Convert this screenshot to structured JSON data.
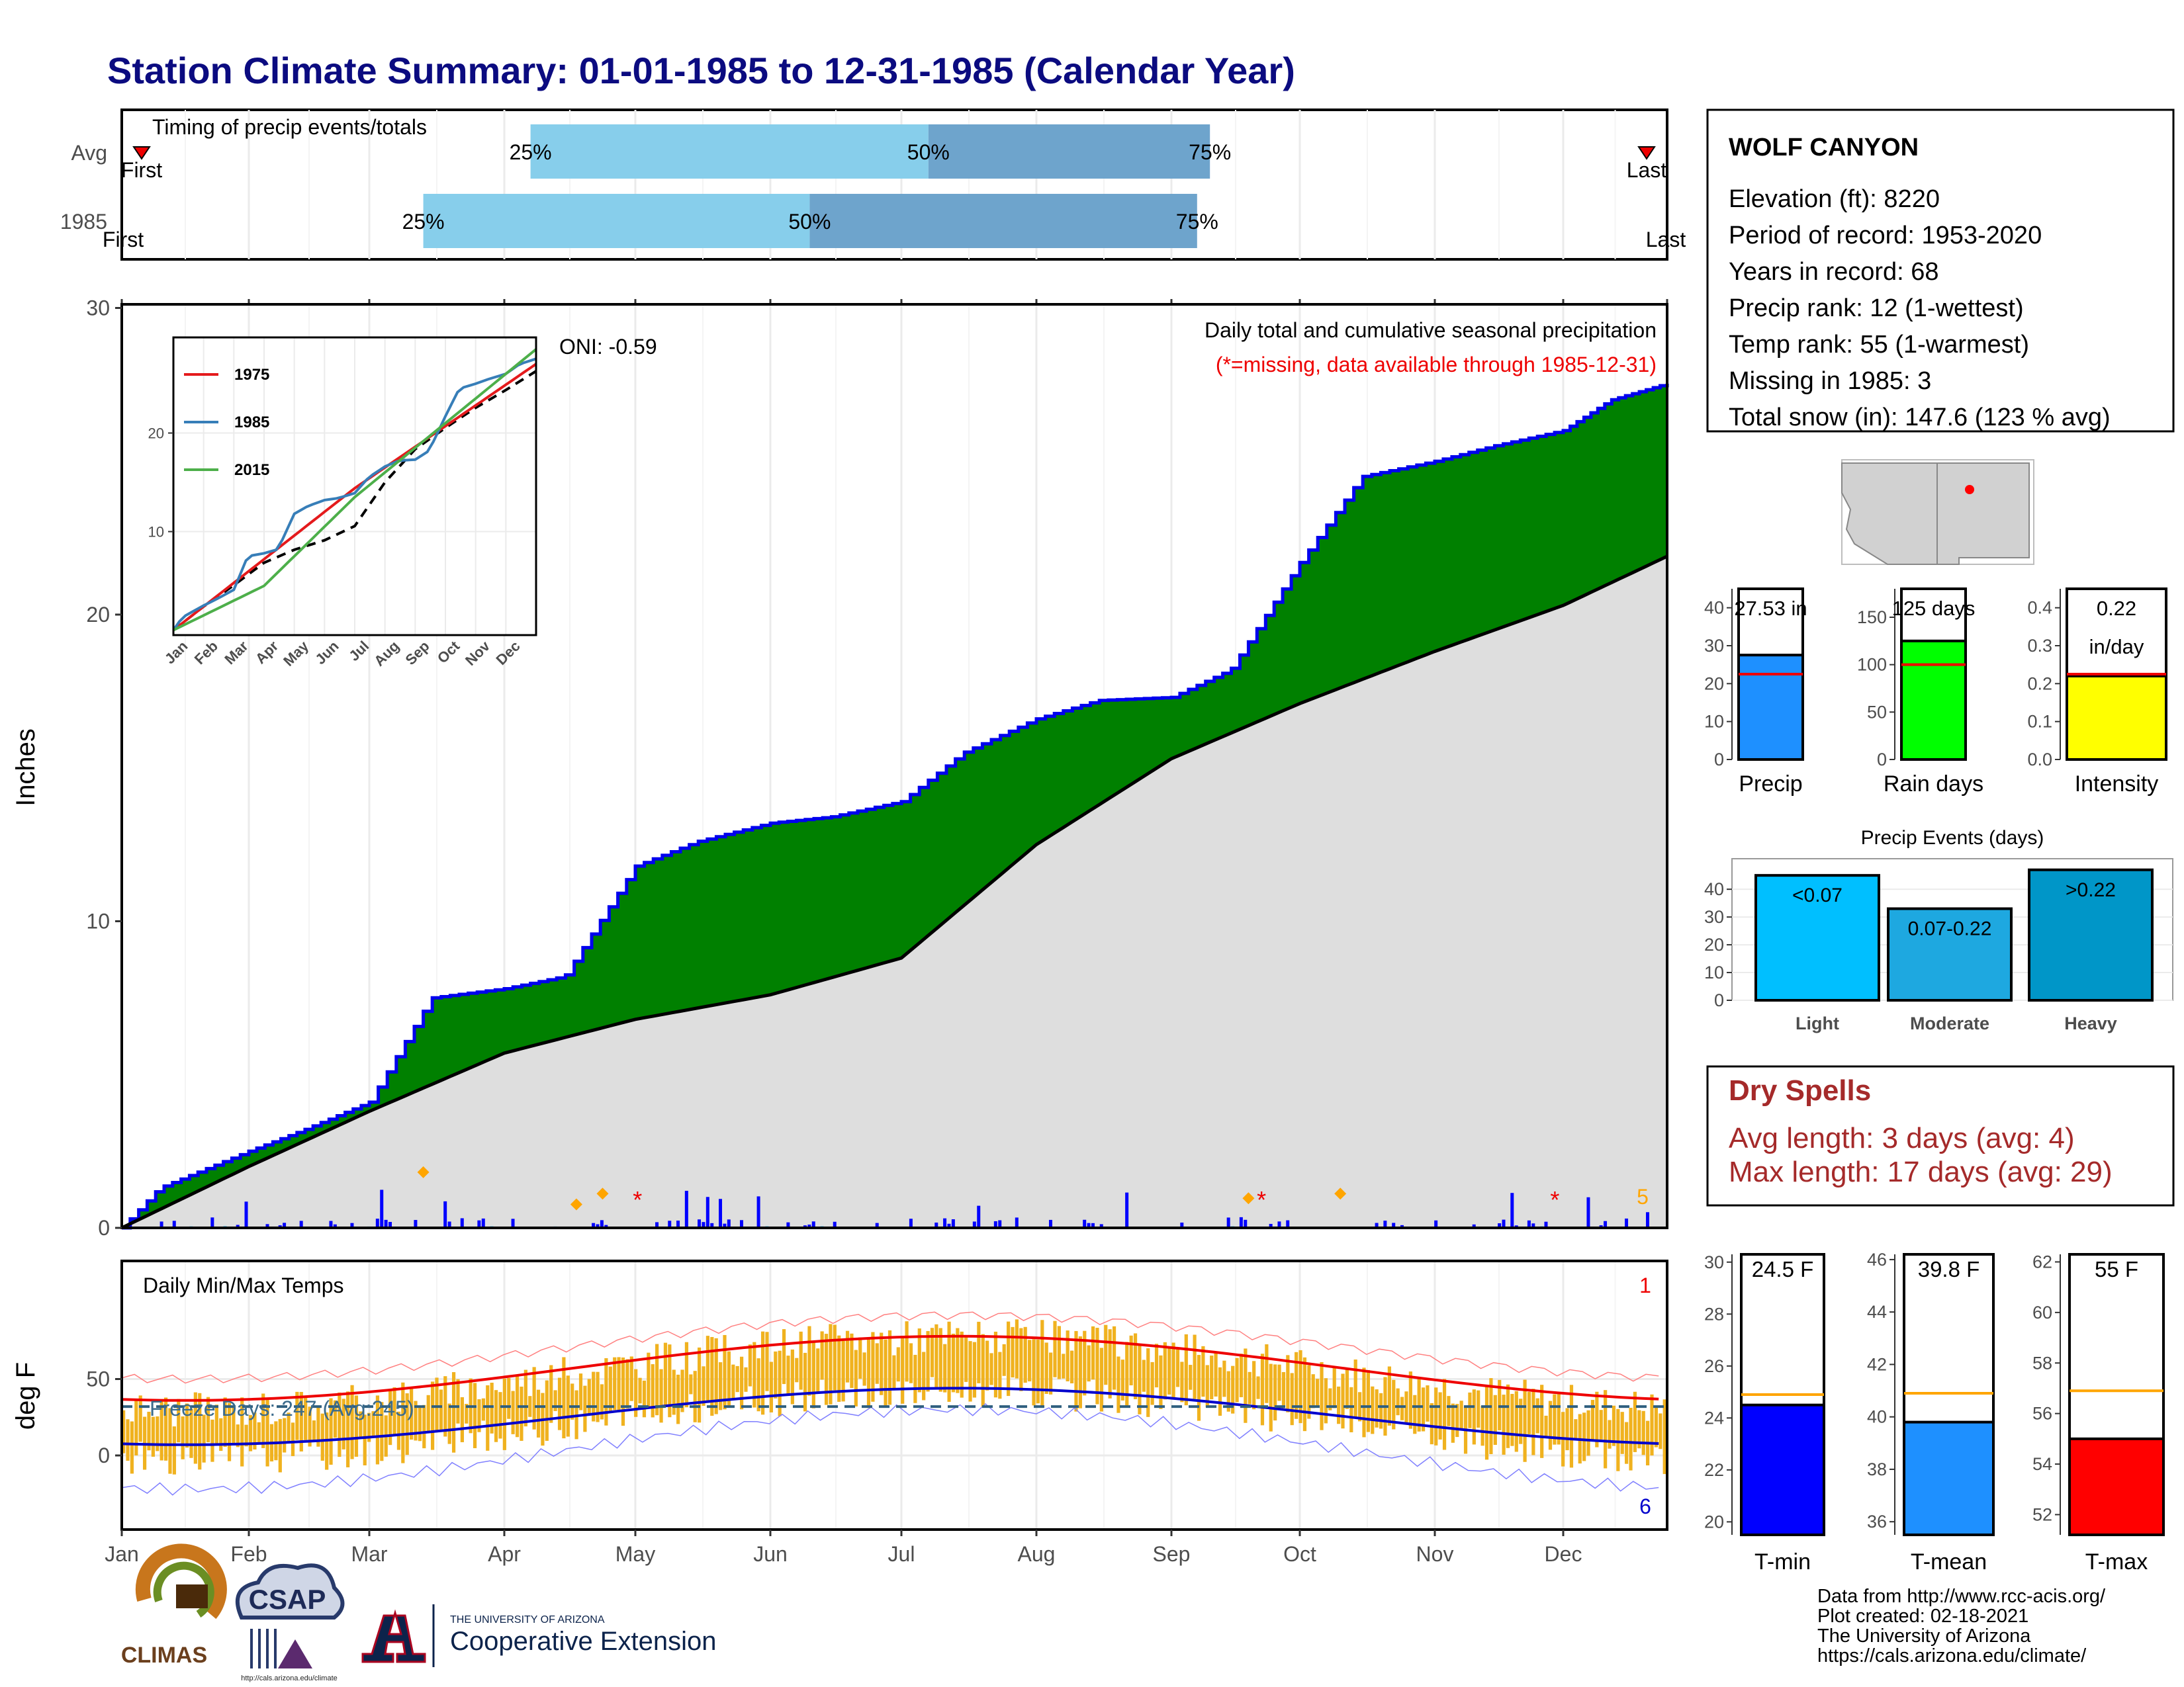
{
  "title": "Station Climate Summary: 01-01-1985 to 12-31-1985 (Calendar Year)",
  "colors": {
    "title": "#0b0b80",
    "cum_fill": "#008000",
    "avg_fill": "#dedede",
    "step_line": "#0000ee",
    "bar_light": "#87ceeb",
    "bar_dark": "#6ea4cc",
    "temp_bar": "#f0b21f",
    "tmax_line": "#ee0000",
    "tmin_line": "#0000cc",
    "dry_spell": "#a52a2a"
  },
  "timing_panel": {
    "title": "Timing of precip events/totals",
    "rows": [
      {
        "label": "Avg",
        "first": "First",
        "last": "Last",
        "q25": "25%",
        "q50": "50%",
        "q75": "75%",
        "q25_month": 4.2,
        "q50_month": 7.2,
        "q75_month": 9.3
      },
      {
        "label": "1985",
        "first": "First",
        "last": "Last",
        "q25": "25%",
        "q50": "50%",
        "q75": "75%",
        "q25_month": 3.4,
        "q50_month": 6.3,
        "q75_month": 9.2
      }
    ]
  },
  "precip_panel": {
    "ylabel": "Inches",
    "subtitle": "Daily total and cumulative seasonal precipitation",
    "note": "(*=missing, data available through 1985-12-31)",
    "oni": "ONI: -0.59",
    "corner_count": "5",
    "y_ticks": [
      "0",
      "10",
      "20",
      "30"
    ]
  },
  "inset": {
    "legend": [
      "1975",
      "1985",
      "2015"
    ],
    "legend_colors": [
      "#e41a1c",
      "#377eb8",
      "#4daf4a"
    ],
    "y_ticks": [
      "10",
      "20"
    ],
    "months": [
      "Jan",
      "Feb",
      "Mar",
      "Apr",
      "May",
      "Jun",
      "Jul",
      "Aug",
      "Sep",
      "Oct",
      "Nov",
      "Dec"
    ]
  },
  "temp_panel": {
    "ylabel": "deg F",
    "title": "Daily Min/Max Temps",
    "freeze": "Freeze Days: 247 (Avg:245)",
    "corner_top": "1",
    "corner_bottom": "6",
    "y_ticks": [
      "0",
      "50"
    ]
  },
  "months": [
    "Jan",
    "Feb",
    "Mar",
    "Apr",
    "May",
    "Jun",
    "Jul",
    "Aug",
    "Sep",
    "Oct",
    "Nov",
    "Dec"
  ],
  "station": {
    "name": "WOLF CANYON",
    "lines": [
      "Elevation (ft): 8220",
      "Period of record: 1953-2020",
      "Years in record: 68",
      "Precip rank: 12 (1-wettest)",
      "Temp rank: 55 (1-warmest)",
      "Missing in 1985: 3",
      "Total snow (in): 147.6 (123 % avg)"
    ]
  },
  "mini_bars": [
    {
      "label": "Precip",
      "value_text": "27.53 in",
      "value": 27.53,
      "avg": 22.5,
      "ymax": 45,
      "ticks": [
        "0",
        "10",
        "20",
        "30",
        "40"
      ],
      "color": "#1e90ff"
    },
    {
      "label": "Rain days",
      "value_text": "125 days",
      "value": 125,
      "avg": 100,
      "ymax": 180,
      "ticks": [
        "0",
        "50",
        "100",
        "150"
      ],
      "color": "#00ff00"
    },
    {
      "label": "Intensity",
      "value_text": "0.22",
      "value_text2": "in/day",
      "value": 0.22,
      "avg": 0.225,
      "ymax": 0.45,
      "ticks": [
        "0.0",
        "0.1",
        "0.2",
        "0.3",
        "0.4"
      ],
      "color": "#ffff00"
    }
  ],
  "events": {
    "title": "Precip Events (days)",
    "ticks": [
      "0",
      "10",
      "20",
      "30",
      "40"
    ],
    "bars": [
      {
        "label": "Light",
        "range": "<0.07",
        "value": 45,
        "color": "#00bfff"
      },
      {
        "label": "Moderate",
        "range": "0.07-0.22",
        "value": 33,
        "color": "#1ea8e0"
      },
      {
        "label": "Heavy",
        "range": ">0.22",
        "value": 47,
        "color": "#0096c8"
      }
    ]
  },
  "dry_spells": {
    "title": "Dry Spells",
    "avg": "Avg length: 3 days (avg: 4)",
    "max": "Max length: 17 days (avg: 29)"
  },
  "temp_bars": [
    {
      "label": "T-min",
      "value_text": "24.5 F",
      "value": 24.5,
      "avg": 24.9,
      "ymin": 19.5,
      "ymax": 30.3,
      "ticks": [
        20,
        22,
        24,
        26,
        28,
        30
      ],
      "color": "#0000ff"
    },
    {
      "label": "T-mean",
      "value_text": "39.8 F",
      "value": 39.8,
      "avg": 40.9,
      "ymin": 35.5,
      "ymax": 46.2,
      "ticks": [
        36,
        38,
        40,
        42,
        44,
        46
      ],
      "color": "#1e90ff"
    },
    {
      "label": "T-max",
      "value_text": "55 F",
      "value": 55,
      "avg": 56.9,
      "ymin": 51.2,
      "ymax": 62.3,
      "ticks": [
        52,
        54,
        56,
        58,
        60,
        62
      ],
      "color": "#ff0000"
    }
  ],
  "footer": [
    "Data from http://www.rcc-acis.org/",
    "Plot created: 02-18-2021",
    "The University of Arizona",
    "https://cals.arizona.edu/climate/"
  ],
  "logos": {
    "climas": "CLIMAS",
    "csap": "CSAP",
    "csap_url": "http://cals.arizona.edu/climate",
    "ua_line1": "THE UNIVERSITY OF ARIZONA",
    "ua_line2": "Cooperative Extension"
  },
  "chart_data": {
    "type": "area",
    "title": "Daily total and cumulative seasonal precipitation",
    "xlabel": "",
    "ylabel": "Inches",
    "ylim": [
      0,
      30
    ],
    "series": [
      {
        "name": "1985",
        "x": [
          "Jan 1",
          "Jan 10",
          "Feb 1",
          "Feb 15",
          "Mar 1",
          "Mar 15",
          "Apr 1",
          "Apr 15",
          "May 1",
          "May 15",
          "Jun 1",
          "Jun 15",
          "Jul 1",
          "Jul 15",
          "Aug 1",
          "Aug 15",
          "Sep 1",
          "Sep 15",
          "Oct 1",
          "Oct 15",
          "Nov 1",
          "Nov 15",
          "Dec 1",
          "Dec 15",
          "Dec 31"
        ],
        "values": [
          0,
          1.3,
          2.5,
          3.2,
          4.1,
          7.5,
          7.8,
          8.2,
          11.8,
          12.6,
          13.2,
          13.4,
          13.9,
          15.5,
          16.6,
          17.2,
          17.3,
          18.2,
          21.7,
          24.5,
          25.0,
          25.5,
          26.0,
          27.0,
          27.53
        ]
      },
      {
        "name": "Avg",
        "x": [
          "Jan 1",
          "Feb 1",
          "Mar 1",
          "Apr 1",
          "May 1",
          "Jun 1",
          "Jul 1",
          "Aug 1",
          "Sep 1",
          "Oct 1",
          "Nov 1",
          "Dec 1",
          "Dec 31"
        ],
        "values": [
          0,
          2.0,
          3.8,
          5.7,
          6.8,
          7.6,
          8.8,
          12.5,
          15.3,
          17.1,
          18.8,
          20.3,
          21.9
        ]
      }
    ]
  }
}
